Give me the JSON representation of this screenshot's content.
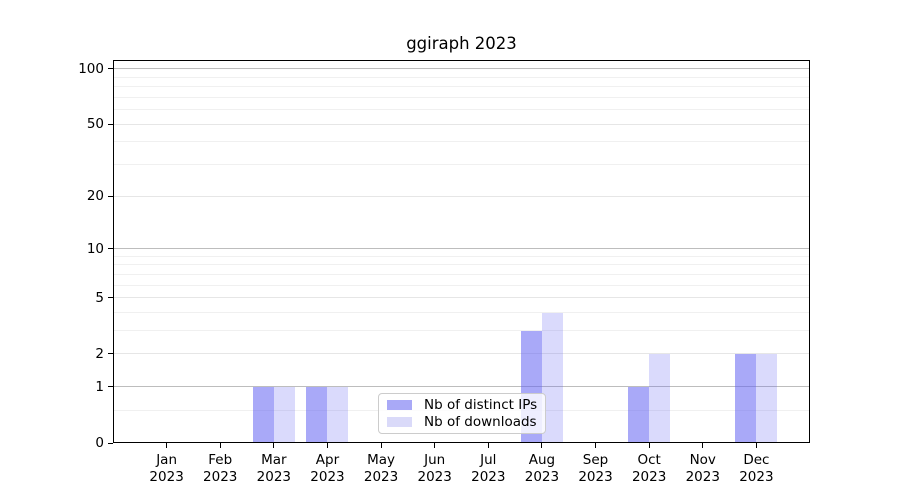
{
  "figure": {
    "title": "ggiraph 2023",
    "background": "#ffffff"
  },
  "chart_data": {
    "type": "bar",
    "title": "ggiraph 2023",
    "categories": [
      "Jan",
      "Feb",
      "Mar",
      "Apr",
      "May",
      "Jun",
      "Jul",
      "Aug",
      "Sep",
      "Oct",
      "Nov",
      "Dec"
    ],
    "x_tick_year": "2023",
    "series": [
      {
        "name": "Nb of distinct IPs",
        "legend_color": "#a9a9f7",
        "fill": "rgba(99,99,243,0.55)",
        "values": [
          0,
          0,
          1,
          1,
          0,
          0,
          0,
          3,
          0,
          1,
          0,
          2
        ]
      },
      {
        "name": "Nb of downloads",
        "legend_color": "#dadaf9",
        "fill": "rgba(99,99,243,0.24)",
        "values": [
          0,
          0,
          1,
          1,
          0,
          0,
          0,
          4,
          0,
          2,
          0,
          2
        ]
      }
    ],
    "yscale": "log1p",
    "ylim": [
      0,
      111.6
    ],
    "y_tick_labels": [
      0,
      1,
      2,
      5,
      10,
      20,
      50,
      100
    ],
    "gridlines": {
      "decade": [
        1,
        10,
        100
      ],
      "labeled": [
        2,
        5,
        20,
        50
      ],
      "minor": [
        0.5,
        3,
        4,
        6,
        7,
        8,
        9,
        30,
        40,
        60,
        70,
        80,
        90
      ]
    },
    "legend": {
      "position": "lower center",
      "items": [
        "Nb of distinct IPs",
        "Nb of downloads"
      ]
    }
  },
  "colors": {
    "grid_decade": "#bdbdbd",
    "grid_labeled": "#e6e6e6",
    "grid_minor": "#f0f0f0",
    "spine": "#000000",
    "tick_label": "#000000",
    "legend_border": "#cccccc",
    "legend_bg": "rgba(255,255,255,0.8)"
  }
}
